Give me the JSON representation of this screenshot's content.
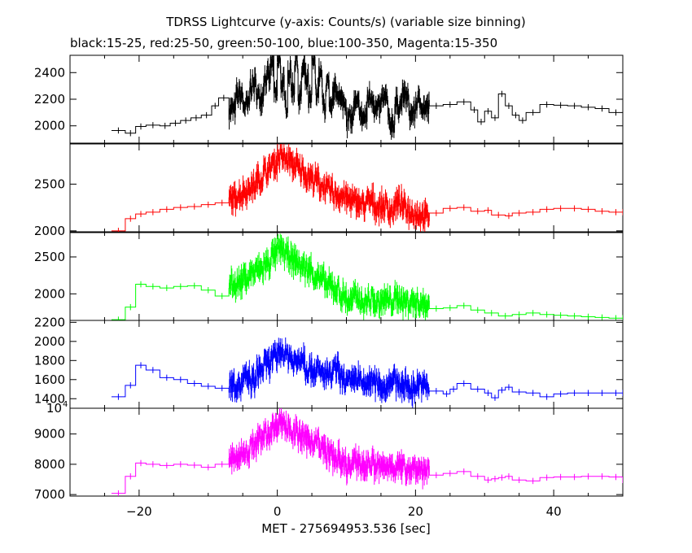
{
  "chart_data": {
    "type": "line",
    "title": "TDRSS Lightcurve (y-axis: Counts/s) (variable size binning)",
    "subtitle": "black:15-25, red:25-50, green:50-100, blue:100-350, Magenta:15-350",
    "xlabel": "MET - 275694953.536 [sec]",
    "xlim": [
      -30,
      50
    ],
    "xticks": [
      -20,
      0,
      20,
      40
    ],
    "panels": [
      {
        "name": "black:15-25",
        "color": "#000000",
        "ylim": [
          1870,
          2530
        ],
        "yticks": [
          2000,
          2200,
          2400
        ],
        "points": [
          [
            -24,
            1965
          ],
          [
            -22,
            1945
          ],
          [
            -20.5,
            1995
          ],
          [
            -19,
            2005
          ],
          [
            -17,
            2000
          ],
          [
            -15.5,
            2020
          ],
          [
            -14,
            2040
          ],
          [
            -12.5,
            2060
          ],
          [
            -11,
            2080
          ],
          [
            -9.5,
            2150
          ],
          [
            -8.5,
            2210
          ],
          [
            -7,
            2120
          ],
          [
            -6,
            2230
          ],
          [
            -5,
            2150
          ],
          [
            -4,
            2310
          ],
          [
            -3,
            2220
          ],
          [
            -2,
            2360
          ],
          [
            -1,
            2460
          ],
          [
            -0.5,
            2230
          ],
          [
            0,
            2480
          ],
          [
            0.5,
            2320
          ],
          [
            1,
            2160
          ],
          [
            1.5,
            2400
          ],
          [
            2,
            2280
          ],
          [
            2.5,
            2500
          ],
          [
            3,
            2200
          ],
          [
            3.5,
            2420
          ],
          [
            4,
            2330
          ],
          [
            4.5,
            2180
          ],
          [
            5,
            2480
          ],
          [
            5.5,
            2260
          ],
          [
            6,
            2380
          ],
          [
            6.5,
            2150
          ],
          [
            7,
            2300
          ],
          [
            7.5,
            2100
          ],
          [
            8,
            2260
          ],
          [
            9,
            2180
          ],
          [
            10,
            2050
          ],
          [
            11,
            2150
          ],
          [
            12,
            2060
          ],
          [
            13,
            2220
          ],
          [
            14,
            2120
          ],
          [
            15,
            2200
          ],
          [
            16,
            2020
          ],
          [
            17,
            2160
          ],
          [
            18,
            2220
          ],
          [
            19,
            2090
          ],
          [
            20,
            2180
          ],
          [
            21,
            2130
          ],
          [
            22,
            2150
          ],
          [
            24,
            2160
          ],
          [
            26,
            2180
          ],
          [
            28,
            2120
          ],
          [
            29,
            2030
          ],
          [
            30,
            2110
          ],
          [
            31,
            2060
          ],
          [
            32,
            2240
          ],
          [
            33,
            2150
          ],
          [
            34,
            2080
          ],
          [
            35,
            2040
          ],
          [
            36,
            2100
          ],
          [
            38,
            2160
          ],
          [
            40,
            2155
          ],
          [
            42,
            2150
          ],
          [
            44,
            2140
          ],
          [
            46,
            2130
          ],
          [
            48,
            2100
          ],
          [
            50,
            2095
          ]
        ]
      },
      {
        "name": "red:25-50",
        "color": "#ff0000",
        "ylim": [
          1990,
          2930
        ],
        "yticks": [
          2000,
          2500
        ],
        "points": [
          [
            -24,
            2000
          ],
          [
            -22,
            2130
          ],
          [
            -20.5,
            2180
          ],
          [
            -19,
            2200
          ],
          [
            -17,
            2230
          ],
          [
            -15,
            2250
          ],
          [
            -13,
            2260
          ],
          [
            -11,
            2280
          ],
          [
            -9,
            2300
          ],
          [
            -7,
            2340
          ],
          [
            -6,
            2390
          ],
          [
            -5,
            2430
          ],
          [
            -4,
            2480
          ],
          [
            -3,
            2560
          ],
          [
            -2,
            2640
          ],
          [
            -1,
            2720
          ],
          [
            0,
            2790
          ],
          [
            1,
            2760
          ],
          [
            2,
            2700
          ],
          [
            3,
            2650
          ],
          [
            4,
            2580
          ],
          [
            5,
            2540
          ],
          [
            6,
            2480
          ],
          [
            7,
            2430
          ],
          [
            8,
            2390
          ],
          [
            9,
            2370
          ],
          [
            10,
            2330
          ],
          [
            11,
            2300
          ],
          [
            12,
            2280
          ],
          [
            13,
            2320
          ],
          [
            14,
            2260
          ],
          [
            15,
            2270
          ],
          [
            16,
            2220
          ],
          [
            17,
            2300
          ],
          [
            18,
            2240
          ],
          [
            19,
            2200
          ],
          [
            20,
            2180
          ],
          [
            21,
            2150
          ],
          [
            22,
            2190
          ],
          [
            24,
            2240
          ],
          [
            26,
            2250
          ],
          [
            28,
            2210
          ],
          [
            30,
            2220
          ],
          [
            31,
            2170
          ],
          [
            33,
            2160
          ],
          [
            34,
            2190
          ],
          [
            36,
            2200
          ],
          [
            38,
            2230
          ],
          [
            40,
            2240
          ],
          [
            42,
            2240
          ],
          [
            44,
            2230
          ],
          [
            46,
            2210
          ],
          [
            48,
            2200
          ],
          [
            50,
            2200
          ]
        ]
      },
      {
        "name": "green:50-100",
        "color": "#00ff00",
        "ylim": [
          1640,
          2830
        ],
        "yticks": [
          2000,
          2500
        ],
        "points": [
          [
            -24,
            1650
          ],
          [
            -22,
            1820
          ],
          [
            -20.5,
            2130
          ],
          [
            -19,
            2100
          ],
          [
            -17,
            2080
          ],
          [
            -15,
            2100
          ],
          [
            -13,
            2110
          ],
          [
            -11,
            2050
          ],
          [
            -9,
            1970
          ],
          [
            -7,
            2130
          ],
          [
            -6,
            2150
          ],
          [
            -5,
            2220
          ],
          [
            -4,
            2290
          ],
          [
            -3,
            2330
          ],
          [
            -2,
            2400
          ],
          [
            -1,
            2520
          ],
          [
            0,
            2600
          ],
          [
            1,
            2520
          ],
          [
            2,
            2440
          ],
          [
            3,
            2380
          ],
          [
            4,
            2330
          ],
          [
            5,
            2250
          ],
          [
            6,
            2180
          ],
          [
            7,
            2110
          ],
          [
            8,
            2060
          ],
          [
            9,
            1970
          ],
          [
            10,
            1900
          ],
          [
            11,
            1960
          ],
          [
            12,
            1880
          ],
          [
            13,
            1920
          ],
          [
            14,
            1870
          ],
          [
            15,
            1920
          ],
          [
            16,
            1900
          ],
          [
            17,
            1940
          ],
          [
            18,
            1890
          ],
          [
            19,
            1900
          ],
          [
            20,
            1880
          ],
          [
            21,
            1860
          ],
          [
            22,
            1800
          ],
          [
            24,
            1810
          ],
          [
            26,
            1840
          ],
          [
            28,
            1780
          ],
          [
            30,
            1740
          ],
          [
            32,
            1700
          ],
          [
            34,
            1720
          ],
          [
            36,
            1740
          ],
          [
            38,
            1720
          ],
          [
            40,
            1710
          ],
          [
            42,
            1700
          ],
          [
            44,
            1690
          ],
          [
            46,
            1680
          ],
          [
            48,
            1670
          ],
          [
            50,
            1670
          ]
        ]
      },
      {
        "name": "blue:100-350",
        "color": "#0000ff",
        "ylim": [
          1300,
          2220
        ],
        "yticks": [
          1400,
          1600,
          1800,
          2000,
          2200
        ],
        "points": [
          [
            -24,
            1420
          ],
          [
            -22,
            1540
          ],
          [
            -20.5,
            1750
          ],
          [
            -19,
            1700
          ],
          [
            -17,
            1620
          ],
          [
            -15,
            1600
          ],
          [
            -13,
            1560
          ],
          [
            -11,
            1530
          ],
          [
            -9,
            1510
          ],
          [
            -7,
            1560
          ],
          [
            -6,
            1540
          ],
          [
            -5,
            1610
          ],
          [
            -4,
            1580
          ],
          [
            -3,
            1700
          ],
          [
            -2,
            1760
          ],
          [
            -1,
            1820
          ],
          [
            0,
            1900
          ],
          [
            1,
            1860
          ],
          [
            2,
            1780
          ],
          [
            3,
            1840
          ],
          [
            4,
            1720
          ],
          [
            5,
            1700
          ],
          [
            6,
            1660
          ],
          [
            7,
            1640
          ],
          [
            8,
            1700
          ],
          [
            9,
            1600
          ],
          [
            10,
            1560
          ],
          [
            11,
            1620
          ],
          [
            12,
            1540
          ],
          [
            13,
            1580
          ],
          [
            14,
            1560
          ],
          [
            15,
            1520
          ],
          [
            16,
            1600
          ],
          [
            17,
            1560
          ],
          [
            18,
            1540
          ],
          [
            19,
            1500
          ],
          [
            20,
            1560
          ],
          [
            21,
            1520
          ],
          [
            22,
            1480
          ],
          [
            24,
            1450
          ],
          [
            25,
            1500
          ],
          [
            26,
            1560
          ],
          [
            28,
            1500
          ],
          [
            30,
            1460
          ],
          [
            31,
            1410
          ],
          [
            32,
            1490
          ],
          [
            33,
            1520
          ],
          [
            34,
            1470
          ],
          [
            36,
            1460
          ],
          [
            38,
            1420
          ],
          [
            40,
            1450
          ],
          [
            42,
            1460
          ],
          [
            44,
            1460
          ],
          [
            46,
            1460
          ],
          [
            48,
            1460
          ],
          [
            50,
            1460
          ]
        ]
      },
      {
        "name": "Magenta:15-350",
        "color": "#ff00ff",
        "ylim": [
          6950,
          9850
        ],
        "yticks": [
          7000,
          8000,
          9000
        ],
        "exponent_label": "10",
        "exponent_power": "4",
        "points": [
          [
            -24,
            7040
          ],
          [
            -22,
            7600
          ],
          [
            -20.5,
            8040
          ],
          [
            -19,
            8000
          ],
          [
            -17,
            7960
          ],
          [
            -15,
            8000
          ],
          [
            -13,
            7970
          ],
          [
            -11,
            7900
          ],
          [
            -9,
            8000
          ],
          [
            -7,
            8150
          ],
          [
            -6,
            8250
          ],
          [
            -5,
            8400
          ],
          [
            -4,
            8600
          ],
          [
            -3,
            8800
          ],
          [
            -2,
            9000
          ],
          [
            -1,
            9200
          ],
          [
            0,
            9450
          ],
          [
            1,
            9250
          ],
          [
            2,
            9050
          ],
          [
            3,
            8900
          ],
          [
            4,
            8800
          ],
          [
            5,
            8750
          ],
          [
            6,
            8500
          ],
          [
            7,
            8350
          ],
          [
            8,
            8200
          ],
          [
            9,
            8000
          ],
          [
            10,
            7900
          ],
          [
            11,
            8100
          ],
          [
            12,
            7950
          ],
          [
            13,
            8050
          ],
          [
            14,
            7920
          ],
          [
            15,
            7880
          ],
          [
            16,
            7980
          ],
          [
            17,
            7900
          ],
          [
            18,
            7880
          ],
          [
            19,
            7900
          ],
          [
            20,
            7850
          ],
          [
            21,
            7820
          ],
          [
            22,
            7640
          ],
          [
            24,
            7700
          ],
          [
            26,
            7760
          ],
          [
            28,
            7600
          ],
          [
            30,
            7480
          ],
          [
            31,
            7520
          ],
          [
            32,
            7560
          ],
          [
            33,
            7600
          ],
          [
            34,
            7480
          ],
          [
            36,
            7450
          ],
          [
            38,
            7560
          ],
          [
            40,
            7580
          ],
          [
            42,
            7580
          ],
          [
            44,
            7600
          ],
          [
            46,
            7600
          ],
          [
            48,
            7580
          ],
          [
            50,
            7480
          ]
        ]
      }
    ]
  }
}
